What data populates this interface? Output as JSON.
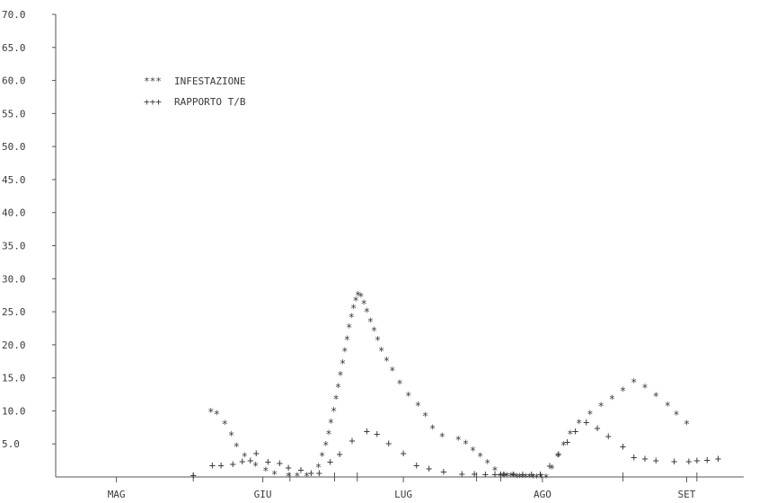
{
  "chart_data": {
    "type": "scatter",
    "title": "",
    "xlabel": "",
    "ylabel": "",
    "ylim": [
      0,
      70
    ],
    "xlim": [
      0,
      9.4
    ],
    "y_ticks": [
      "70.0",
      "65.0",
      "60.0",
      "55.0",
      "50.0",
      "45.0",
      "40.0",
      "35.0",
      "30.0",
      "25.0",
      "20.0",
      "15.0",
      "10.0",
      "5.0"
    ],
    "y_tick_values": [
      70,
      65,
      60,
      55,
      50,
      45,
      40,
      35,
      30,
      25,
      20,
      15,
      10,
      5
    ],
    "x_ticks": [
      {
        "label": "MAG",
        "x": 0.83
      },
      {
        "label": "GIU",
        "x": 2.83
      },
      {
        "label": "LUG",
        "x": 4.75
      },
      {
        "label": "AGO",
        "x": 6.65
      },
      {
        "label": "SET",
        "x": 8.62
      }
    ],
    "x_minor_ticks": [
      1.88,
      3.2,
      3.81,
      4.12,
      5.75,
      6.08,
      7.75,
      8.76
    ],
    "grid": false,
    "legend": "top-left",
    "series": [
      {
        "name": "INFESTAZIONE",
        "marker": "*",
        "x": [
          2.12,
          2.2,
          2.31,
          2.4,
          2.47,
          2.58,
          2.73,
          2.87,
          2.99,
          3.18,
          3.3,
          3.43,
          3.59,
          3.64,
          3.69,
          3.73,
          3.76,
          3.8,
          3.83,
          3.86,
          3.89,
          3.92,
          3.95,
          3.98,
          4.01,
          4.04,
          4.07,
          4.1,
          4.13,
          4.17,
          4.21,
          4.25,
          4.3,
          4.35,
          4.4,
          4.45,
          4.52,
          4.6,
          4.7,
          4.82,
          4.95,
          5.05,
          5.15,
          5.28,
          5.5,
          5.6,
          5.7,
          5.8,
          5.9,
          6.0,
          6.08,
          6.13,
          6.17,
          6.22,
          6.26,
          6.3,
          6.34,
          6.38,
          6.42,
          6.47,
          6.52,
          6.57,
          6.63,
          6.7,
          6.78,
          6.86,
          6.94,
          7.03,
          7.15,
          7.3,
          7.45,
          7.6,
          7.75,
          7.9,
          8.05,
          8.2,
          8.36,
          8.48,
          8.62
        ],
        "y": [
          10.3,
          10.0,
          8.5,
          6.8,
          5.1,
          3.6,
          2.2,
          1.4,
          0.9,
          0.6,
          0.6,
          0.6,
          2.0,
          3.7,
          5.3,
          7.0,
          8.7,
          10.5,
          12.3,
          14.1,
          15.9,
          17.7,
          19.5,
          21.3,
          23.1,
          24.7,
          26.0,
          27.2,
          28.0,
          27.8,
          26.7,
          25.5,
          24.0,
          22.6,
          21.2,
          19.6,
          18.1,
          16.6,
          14.6,
          12.8,
          11.3,
          9.7,
          7.8,
          6.6,
          6.1,
          5.5,
          4.5,
          3.6,
          2.6,
          1.5,
          0.6,
          0.6,
          0.6,
          0.6,
          0.6,
          0.5,
          0.5,
          0.5,
          0.5,
          0.5,
          0.4,
          0.4,
          0.4,
          0.4,
          1.8,
          3.6,
          5.3,
          7.0,
          8.6,
          10.0,
          11.2,
          12.3,
          13.5,
          14.8,
          14.0,
          12.7,
          11.3,
          9.9,
          8.5
        ]
      },
      {
        "name": "RAPPORTO T/B",
        "marker": "+",
        "x": [
          1.88,
          2.14,
          2.26,
          2.42,
          2.55,
          2.66,
          2.74,
          2.9,
          3.06,
          3.18,
          3.35,
          3.49,
          3.6,
          3.75,
          3.88,
          4.05,
          4.25,
          4.39,
          4.55,
          4.75,
          4.93,
          5.1,
          5.3,
          5.55,
          5.72,
          5.87,
          6.0,
          6.08,
          6.12,
          6.25,
          6.38,
          6.5,
          6.62,
          6.75,
          6.87,
          6.99,
          7.1,
          7.25,
          7.4,
          7.55,
          7.75,
          7.9,
          8.05,
          8.2,
          8.45,
          8.65,
          8.76,
          8.9,
          9.05
        ],
        "y": [
          0.3,
          1.8,
          1.8,
          2.0,
          2.4,
          2.5,
          3.6,
          2.3,
          2.1,
          1.4,
          1.1,
          0.6,
          0.6,
          2.3,
          3.5,
          5.5,
          6.9,
          6.5,
          5.1,
          3.6,
          1.8,
          1.3,
          0.8,
          0.5,
          0.5,
          0.4,
          0.4,
          0.4,
          0.4,
          0.4,
          0.4,
          0.4,
          0.4,
          1.7,
          3.5,
          5.3,
          6.9,
          8.3,
          7.4,
          6.2,
          4.6,
          3.0,
          2.8,
          2.5,
          2.4,
          2.4,
          2.5,
          2.6,
          2.8
        ]
      }
    ]
  }
}
